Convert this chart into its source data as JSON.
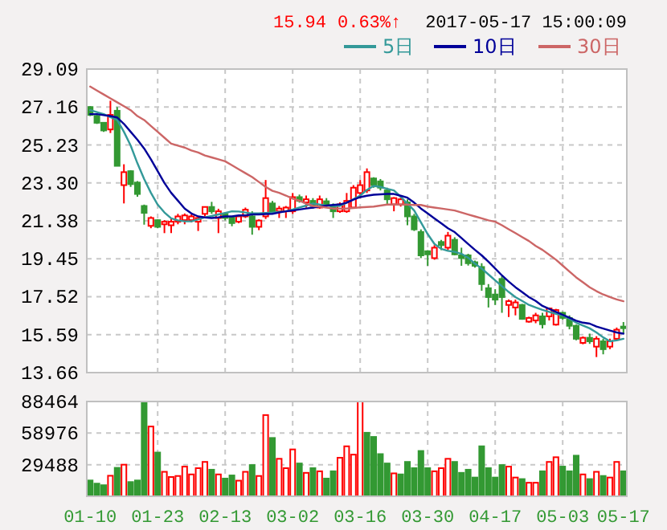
{
  "chart_data": [
    {
      "type": "candlestick",
      "annotations": [
        "15.94",
        "0.63%↑",
        "2017-05-17 15:00:09"
      ],
      "legend": "top right",
      "grid": true,
      "tick_labels": "y",
      "categories": [
        null,
        null,
        null,
        null,
        null,
        null,
        null,
        null,
        null,
        null,
        null,
        null,
        null,
        null,
        null,
        null,
        null,
        null,
        null,
        null,
        null,
        null,
        null,
        null,
        null,
        null,
        null,
        null,
        null,
        null,
        null,
        null,
        null,
        null,
        null,
        null,
        null,
        null,
        null,
        null,
        null,
        null,
        null,
        null,
        null,
        null,
        null,
        null,
        null,
        null,
        null,
        null,
        null,
        null,
        null,
        null,
        null,
        null,
        null,
        null,
        null,
        null,
        null,
        null,
        null,
        null,
        null,
        null,
        null,
        null,
        null,
        null,
        null,
        null,
        null,
        null,
        null,
        null,
        null,
        null
      ],
      "ylim": [
        13.66,
        29.09
      ],
      "yticks": [
        13.66,
        15.59,
        17.52,
        19.45,
        21.38,
        {
          "value": 23.3,
          "label": "23.30"
        },
        25.23,
        27.16,
        29.09
      ],
      "ohlc": [
        [
          27.16,
          27.2,
          26.7,
          26.76
        ],
        [
          26.71,
          26.8,
          26.3,
          26.36
        ],
        [
          26.36,
          26.4,
          25.9,
          25.97
        ],
        [
          26.02,
          27.48,
          25.84,
          26.76
        ],
        [
          26.97,
          27.16,
          24.17,
          24.17
        ],
        [
          23.19,
          24.25,
          22.26,
          23.85
        ],
        [
          23.9,
          23.95,
          23.1,
          23.24
        ],
        [
          23.32,
          23.4,
          22.6,
          22.74
        ],
        [
          22.13,
          22.2,
          21.18,
          21.78
        ],
        [
          21.12,
          21.6,
          21.0,
          21.52
        ],
        [
          21.41,
          21.45,
          21.0,
          21.07
        ],
        [
          21.2,
          21.41,
          20.75,
          21.33
        ],
        [
          21.15,
          21.5,
          20.75,
          21.33
        ],
        [
          21.33,
          21.73,
          21.2,
          21.6
        ],
        [
          21.41,
          21.75,
          21.2,
          21.65
        ],
        [
          21.41,
          21.7,
          21.3,
          21.6
        ],
        [
          21.33,
          21.6,
          20.86,
          21.52
        ],
        [
          21.73,
          22.1,
          21.6,
          22.08
        ],
        [
          22.08,
          22.34,
          21.73,
          21.86
        ],
        [
          21.52,
          21.99,
          20.75,
          21.86
        ],
        [
          21.73,
          21.8,
          21.4,
          21.52
        ],
        [
          21.55,
          21.6,
          21.1,
          21.26
        ],
        [
          21.33,
          21.65,
          21.25,
          21.6
        ],
        [
          21.6,
          22.05,
          21.52,
          21.94
        ],
        [
          21.6,
          21.86,
          20.67,
          21.07
        ],
        [
          21.07,
          21.45,
          20.9,
          21.39
        ],
        [
          21.6,
          23.45,
          21.47,
          22.53
        ],
        [
          22.26,
          22.39,
          21.73,
          21.86
        ],
        [
          21.86,
          22.13,
          21.52,
          22.0
        ],
        [
          21.86,
          22.13,
          21.52,
          22.05
        ],
        [
          21.86,
          22.79,
          21.73,
          22.58
        ],
        [
          22.58,
          22.71,
          22.3,
          22.39
        ],
        [
          22.31,
          22.66,
          22.05,
          22.47
        ],
        [
          22.39,
          22.53,
          21.99,
          22.13
        ],
        [
          22.05,
          22.66,
          21.99,
          22.47
        ],
        [
          22.37,
          22.53,
          22.05,
          22.21
        ],
        [
          22.1,
          22.26,
          21.52,
          21.86
        ],
        [
          21.86,
          22.31,
          21.78,
          22.21
        ],
        [
          21.86,
          22.79,
          21.78,
          22.39
        ],
        [
          22.05,
          23.19,
          21.99,
          23.06
        ],
        [
          22.79,
          23.45,
          22.53,
          23.19
        ],
        [
          22.92,
          24.04,
          22.79,
          23.85
        ],
        [
          23.53,
          23.59,
          23.06,
          23.19
        ],
        [
          23.38,
          23.5,
          22.92,
          23.06
        ],
        [
          22.92,
          23.06,
          22.21,
          22.47
        ],
        [
          22.21,
          22.58,
          21.86,
          22.53
        ],
        [
          22.21,
          22.55,
          22.1,
          22.47
        ],
        [
          22.31,
          22.47,
          21.15,
          21.6
        ],
        [
          21.6,
          21.73,
          20.86,
          20.94
        ],
        [
          20.81,
          20.94,
          19.48,
          19.62
        ],
        [
          19.83,
          19.88,
          19.09,
          19.67
        ],
        [
          19.48,
          20.14,
          19.4,
          20.01
        ],
        [
          20.3,
          20.41,
          19.88,
          20.14
        ],
        [
          20.01,
          20.81,
          19.88,
          20.62
        ],
        [
          20.41,
          20.54,
          19.62,
          19.67
        ],
        [
          19.62,
          20.01,
          19.09,
          19.48
        ],
        [
          19.62,
          19.7,
          19.1,
          19.22
        ],
        [
          19.27,
          19.35,
          19.0,
          19.09
        ],
        [
          19.03,
          19.22,
          17.82,
          18.16
        ],
        [
          17.95,
          18.16,
          16.97,
          17.5
        ],
        [
          17.63,
          17.9,
          17.1,
          17.37
        ],
        [
          18.42,
          18.56,
          16.7,
          17.5
        ],
        [
          17.1,
          17.37,
          16.49,
          17.29
        ],
        [
          16.97,
          17.37,
          16.57,
          17.23
        ],
        [
          17.1,
          17.15,
          16.35,
          16.39
        ],
        [
          16.25,
          16.5,
          16.2,
          16.44
        ],
        [
          16.31,
          16.7,
          16.17,
          16.57
        ],
        [
          16.52,
          16.7,
          15.91,
          16.12
        ],
        [
          16.52,
          16.97,
          16.31,
          16.92
        ],
        [
          16.1,
          16.9,
          16.05,
          16.84
        ],
        [
          16.7,
          16.75,
          16.35,
          16.44
        ],
        [
          16.44,
          16.57,
          15.86,
          16.04
        ],
        [
          16.04,
          16.1,
          15.3,
          15.38
        ],
        [
          15.17,
          15.5,
          15.1,
          15.43
        ],
        [
          15.43,
          15.64,
          15.12,
          15.25
        ],
        [
          14.98,
          15.51,
          14.45,
          15.38
        ],
        [
          15.25,
          15.38,
          14.59,
          14.85
        ],
        [
          14.98,
          15.38,
          14.85,
          15.25
        ],
        [
          15.38,
          15.95,
          15.3,
          15.84
        ],
        [
          16.0,
          16.23,
          15.64,
          15.94
        ]
      ],
      "colors": [
        "#339933",
        "#339933",
        "#339933",
        "#ff0000",
        "#339933",
        "#ff0000",
        "#339933",
        "#339933",
        "#339933",
        "#ff0000",
        "#339933",
        "#ff0000",
        "#ff0000",
        "#ff0000",
        "#ff0000",
        "#ff0000",
        "#ff0000",
        "#ff0000",
        "#339933",
        "#ff0000",
        "#339933",
        "#339933",
        "#ff0000",
        "#ff0000",
        "#339933",
        "#ff0000",
        "#ff0000",
        "#339933",
        "#ff0000",
        "#ff0000",
        "#ff0000",
        "#339933",
        "#ff0000",
        "#339933",
        "#ff0000",
        "#339933",
        "#339933",
        "#ff0000",
        "#ff0000",
        "#ff0000",
        "#ff0000",
        "#ff0000",
        "#339933",
        "#339933",
        "#339933",
        "#ff0000",
        "#ff0000",
        "#339933",
        "#339933",
        "#339933",
        "#339933",
        "#ff0000",
        "#339933",
        "#ff0000",
        "#339933",
        "#339933",
        "#339933",
        "#339933",
        "#339933",
        "#339933",
        "#339933",
        "#339933",
        "#ff0000",
        "#ff0000",
        "#339933",
        "#ff0000",
        "#ff0000",
        "#339933",
        "#ff0000",
        "#ff0000",
        "#339933",
        "#339933",
        "#339933",
        "#ff0000",
        "#339933",
        "#ff0000",
        "#339933",
        "#ff0000",
        "#ff0000",
        "#339933"
      ],
      "series": [
        {
          "type": "line",
          "name": "5日",
          "color": "#339999",
          "values": [
            27.0,
            26.9,
            26.8,
            26.65,
            26.5,
            25.9,
            25.2,
            24.3,
            23.5,
            22.8,
            22.2,
            21.8,
            21.5,
            21.4,
            21.35,
            21.35,
            21.45,
            21.55,
            21.62,
            21.7,
            21.78,
            21.86,
            21.85,
            21.8,
            21.75,
            21.75,
            21.78,
            21.8,
            21.83,
            21.86,
            21.95,
            22.05,
            22.15,
            22.26,
            22.2,
            22.15,
            22.13,
            22.13,
            22.3,
            22.48,
            22.66,
            22.95,
            23.15,
            23.1,
            23.0,
            22.92,
            22.6,
            22.25,
            21.9,
            21.3,
            20.7,
            20.2,
            19.95,
            19.85,
            19.8,
            19.7,
            19.5,
            19.2,
            18.95,
            18.65,
            18.35,
            18.05,
            17.76,
            17.5,
            17.3,
            17.1,
            16.97,
            16.85,
            16.75,
            16.65,
            16.57,
            16.4,
            16.2,
            16.05,
            15.91,
            15.7,
            15.45,
            15.25,
            15.3,
            15.38
          ]
        },
        {
          "type": "line",
          "name": "10日",
          "color": "#000099",
          "values": [
            26.8,
            26.8,
            26.75,
            26.7,
            26.63,
            26.3,
            25.9,
            25.5,
            25.05,
            24.5,
            23.9,
            23.3,
            22.8,
            22.4,
            22.0,
            21.75,
            21.6,
            21.55,
            21.52,
            21.55,
            21.6,
            21.6,
            21.65,
            21.65,
            21.7,
            21.7,
            21.72,
            21.73,
            21.8,
            21.86,
            21.9,
            21.95,
            22.0,
            22.05,
            22.1,
            22.15,
            22.18,
            22.21,
            22.3,
            22.45,
            22.58,
            22.65,
            22.7,
            22.72,
            22.74,
            22.74,
            22.65,
            22.55,
            22.3,
            22.0,
            21.75,
            21.5,
            21.25,
            21.0,
            20.8,
            20.5,
            20.2,
            19.9,
            19.62,
            19.3,
            18.95,
            18.6,
            18.29,
            18.0,
            17.75,
            17.5,
            17.3,
            17.05,
            16.9,
            16.75,
            16.6,
            16.45,
            16.3,
            16.2,
            16.15,
            16.0,
            15.9,
            15.8,
            15.7,
            15.64
          ]
        },
        {
          "type": "line",
          "name": "30日",
          "color": "#cc6666",
          "values": [
            28.2,
            28.0,
            27.8,
            27.6,
            27.4,
            27.2,
            27.0,
            26.7,
            26.5,
            26.2,
            25.9,
            25.6,
            25.3,
            25.2,
            25.1,
            24.95,
            24.85,
            24.7,
            24.6,
            24.5,
            24.4,
            24.2,
            24.0,
            23.8,
            23.6,
            23.35,
            23.1,
            22.9,
            22.8,
            22.66,
            22.5,
            22.4,
            22.25,
            22.13,
            22.1,
            22.05,
            22.0,
            22.0,
            22.0,
            22.03,
            22.06,
            22.08,
            22.1,
            22.15,
            22.2,
            22.21,
            22.2,
            22.2,
            22.18,
            22.18,
            22.1,
            22.05,
            22.0,
            21.95,
            21.9,
            21.8,
            21.7,
            21.6,
            21.5,
            21.4,
            21.33,
            21.15,
            20.95,
            20.75,
            20.55,
            20.35,
            20.1,
            19.9,
            19.65,
            19.4,
            19.1,
            18.8,
            18.5,
            18.25,
            18.0,
            17.8,
            17.63,
            17.5,
            17.38,
            17.29
          ]
        }
      ]
    },
    {
      "type": "bar",
      "grid": true,
      "categories": [
        "01-10",
        null,
        null,
        null,
        null,
        null,
        null,
        null,
        null,
        null,
        "01-23",
        null,
        null,
        null,
        null,
        null,
        null,
        null,
        null,
        null,
        "02-13",
        null,
        null,
        null,
        null,
        null,
        null,
        null,
        null,
        null,
        "03-02",
        null,
        null,
        null,
        null,
        null,
        null,
        null,
        null,
        null,
        "03-16",
        null,
        null,
        null,
        null,
        null,
        null,
        null,
        null,
        null,
        "03-30",
        null,
        null,
        null,
        null,
        null,
        null,
        null,
        null,
        null,
        "04-17",
        null,
        null,
        null,
        null,
        null,
        null,
        null,
        null,
        null,
        "05-03",
        null,
        null,
        null,
        null,
        null,
        null,
        null,
        null,
        "05-17"
      ],
      "ylim": [
        0,
        88464
      ],
      "yticks": [
        29488,
        58976,
        88464
      ],
      "values": [
        14745,
        11796,
        10322,
        19169,
        26541,
        29490,
        13271,
        14745,
        88464,
        65124,
        40824,
        22842,
        17982,
        18954,
        27702,
        20412,
        26244,
        32076,
        24786,
        20412,
        16524,
        19440,
        14580,
        22842,
        29160,
        18954,
        75816,
        54432,
        34992,
        26244,
        43740,
        30618,
        21870,
        26244,
        23328,
        16524,
        23328,
        35964,
        46656,
        38880,
        88464,
        59292,
        55404,
        39366,
        30618,
        21384,
        20412,
        32076,
        26244,
        42282,
        26244,
        23328,
        26244,
        34992,
        32076,
        21870,
        24786,
        17496,
        46656,
        26244,
        17496,
        29160,
        27702,
        17496,
        16038,
        12636,
        12636,
        23328,
        32076,
        36450,
        27702,
        23328,
        37908,
        20412,
        16038,
        22842,
        18954,
        17496,
        32076,
        23328
      ],
      "colors": [
        "#339933",
        "#339933",
        "#339933",
        "#ff0000",
        "#339933",
        "#ff0000",
        "#339933",
        "#339933",
        "#339933",
        "#ff0000",
        "#339933",
        "#ff0000",
        "#ff0000",
        "#ff0000",
        "#ff0000",
        "#ff0000",
        "#ff0000",
        "#ff0000",
        "#339933",
        "#ff0000",
        "#339933",
        "#339933",
        "#ff0000",
        "#ff0000",
        "#339933",
        "#ff0000",
        "#ff0000",
        "#339933",
        "#ff0000",
        "#ff0000",
        "#ff0000",
        "#339933",
        "#ff0000",
        "#339933",
        "#ff0000",
        "#339933",
        "#339933",
        "#ff0000",
        "#ff0000",
        "#ff0000",
        "#ff0000",
        "#339933",
        "#339933",
        "#339933",
        "#339933",
        "#ff0000",
        "#339933",
        "#339933",
        "#339933",
        "#339933",
        "#339933",
        "#ff0000",
        "#ff0000",
        "#ff0000",
        "#339933",
        "#339933",
        "#339933",
        "#339933",
        "#339933",
        "#339933",
        "#339933",
        "#339933",
        "#ff0000",
        "#ff0000",
        "#339933",
        "#ff0000",
        "#ff0000",
        "#339933",
        "#ff0000",
        "#ff0000",
        "#339933",
        "#339933",
        "#339933",
        "#ff0000",
        "#339933",
        "#ff0000",
        "#339933",
        "#ff0000",
        "#ff0000",
        "#339933"
      ]
    }
  ]
}
